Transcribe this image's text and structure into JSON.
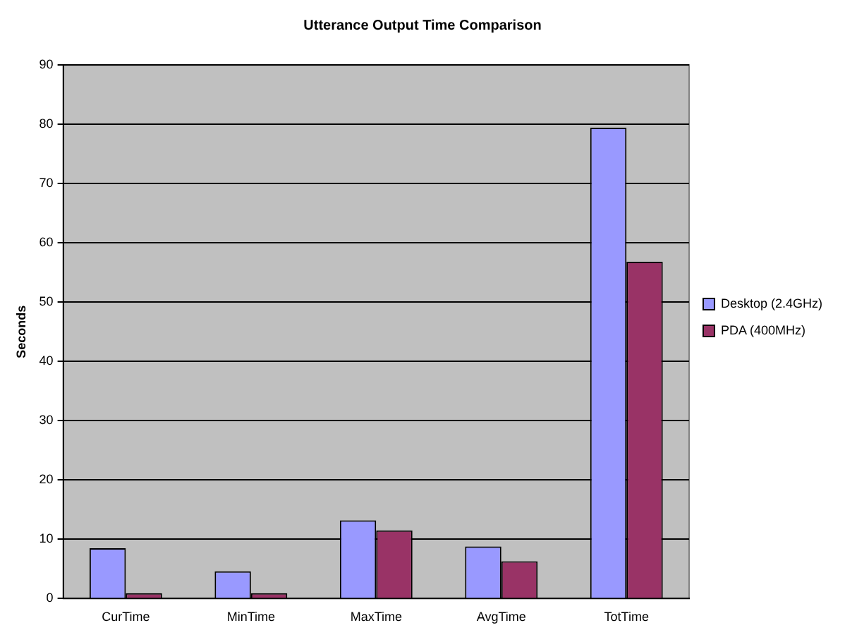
{
  "chart_data": {
    "type": "bar",
    "title": "Utterance Output Time Comparison",
    "ylabel": "Seconds",
    "categories": [
      "CurTime",
      "MinTime",
      "MaxTime",
      "AvgTime",
      "TotTime"
    ],
    "series": [
      {
        "name": "Desktop (2.4GHz)",
        "color": "#9999ff",
        "values": [
          8.5,
          4.6,
          13.2,
          8.8,
          79.4
        ]
      },
      {
        "name": "PDA (400MHz)",
        "color": "#993366",
        "values": [
          0.9,
          0.9,
          11.5,
          6.3,
          56.8
        ]
      }
    ],
    "ylim": [
      0,
      90
    ],
    "yticks": [
      0,
      10,
      20,
      30,
      40,
      50,
      60,
      70,
      80,
      90
    ],
    "grid": "y",
    "legend": "right"
  }
}
